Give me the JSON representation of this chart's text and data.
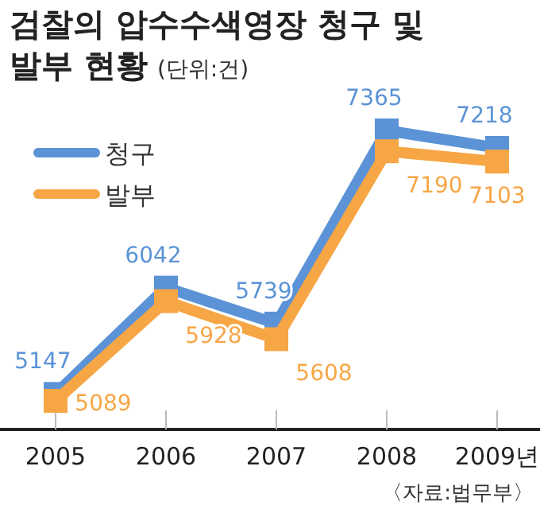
{
  "chart_data": {
    "type": "line",
    "title": "검찰의 압수수색영장 청구 및 발부 현황",
    "subtitle": "(단위:건)",
    "categories": [
      "2005",
      "2006",
      "2007",
      "2008",
      "2009년"
    ],
    "series": [
      {
        "name": "청구",
        "color": "#5b93d6",
        "values": [
          5147,
          6042,
          5739,
          7365,
          7218
        ]
      },
      {
        "name": "발부",
        "color": "#f7a645",
        "values": [
          5089,
          5928,
          5608,
          7190,
          7103
        ]
      }
    ],
    "marker": "square",
    "data_labels": true,
    "legend": "top left",
    "annotations": [
      "〈자료:법무부〉"
    ]
  }
}
